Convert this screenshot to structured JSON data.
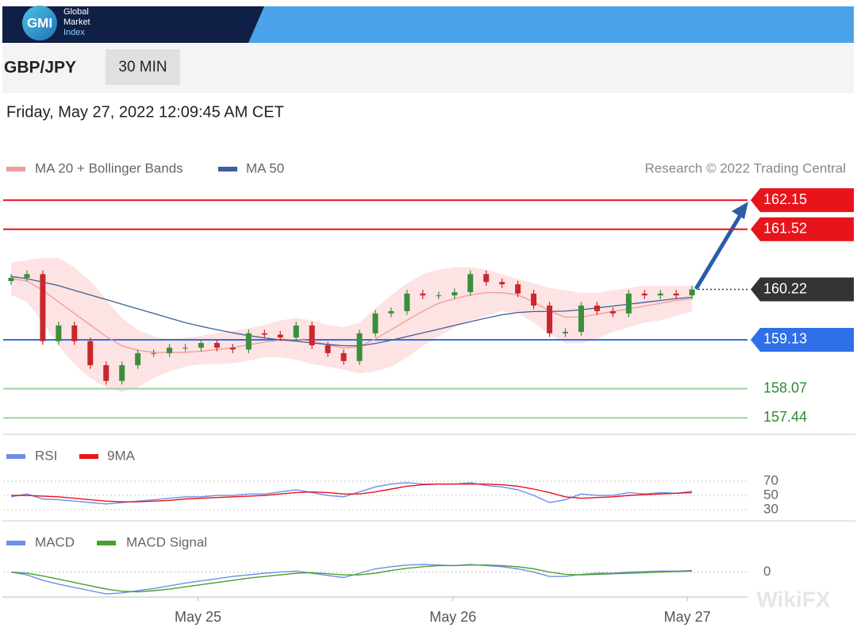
{
  "header": {
    "logo": "GMI",
    "brand": [
      "Global",
      "Market",
      "Index"
    ]
  },
  "symbol": "GBP/JPY",
  "timeframe": "30 MIN",
  "timestamp": "Friday, May 27, 2022 12:09:45 AM CET",
  "watermark": "WikiFX",
  "chart_data": [
    {
      "type": "candlestick",
      "credit": "Research © 2022 Trading Central",
      "x": [
        0,
        1,
        2,
        3,
        4,
        5,
        6,
        7,
        8,
        9,
        10,
        11,
        12,
        13,
        14,
        15,
        16,
        17,
        18,
        19,
        20,
        21,
        22,
        23,
        24,
        25,
        26,
        27,
        28,
        29,
        30,
        31,
        32,
        33,
        34,
        35,
        36,
        37,
        38,
        39,
        40,
        41,
        42,
        43
      ],
      "xlim": [
        -0.5,
        46.5
      ],
      "ylim": [
        157.12,
        162.53
      ],
      "up_color": "#3a8f3a",
      "down_color": "#c8282d",
      "open": [
        160.4,
        160.47,
        160.55,
        159.1,
        159.44,
        159.1,
        158.58,
        158.24,
        158.58,
        158.84,
        158.84,
        158.96,
        158.96,
        159.06,
        158.96,
        158.92,
        159.27,
        159.24,
        159.18,
        159.44,
        159.01,
        158.84,
        158.67,
        159.27,
        159.7,
        159.75,
        160.13,
        160.09,
        160.09,
        160.16,
        160.55,
        160.38,
        160.33,
        160.13,
        159.87,
        159.27,
        159.3,
        159.87,
        159.75,
        159.7,
        160.13,
        160.09,
        160.13,
        160.09
      ],
      "high": [
        160.55,
        160.63,
        160.63,
        159.52,
        159.52,
        159.18,
        158.66,
        158.66,
        158.92,
        158.92,
        159.04,
        159.04,
        159.14,
        159.14,
        159.04,
        159.35,
        159.35,
        159.32,
        159.52,
        159.52,
        159.09,
        158.92,
        159.35,
        159.78,
        159.83,
        160.21,
        160.21,
        160.17,
        160.24,
        160.63,
        160.63,
        160.46,
        160.41,
        160.21,
        159.95,
        159.38,
        159.95,
        159.95,
        159.83,
        160.21,
        160.21,
        160.21,
        160.21,
        160.3
      ],
      "low": [
        160.32,
        160.39,
        159.02,
        159.02,
        159.02,
        158.5,
        158.16,
        158.16,
        158.5,
        158.76,
        158.76,
        158.88,
        158.88,
        158.88,
        158.84,
        158.84,
        159.16,
        159.1,
        159.1,
        158.93,
        158.76,
        158.59,
        158.59,
        159.19,
        159.62,
        159.67,
        160.01,
        160.01,
        160.01,
        160.08,
        160.3,
        160.25,
        160.05,
        159.79,
        159.19,
        159.19,
        159.22,
        159.67,
        159.62,
        159.62,
        160.01,
        160.01,
        160.01,
        160.01
      ],
      "close": [
        160.47,
        160.55,
        159.1,
        159.44,
        159.1,
        158.58,
        158.24,
        158.58,
        158.84,
        158.84,
        158.96,
        158.96,
        159.06,
        158.96,
        158.92,
        159.27,
        159.24,
        159.18,
        159.44,
        159.01,
        158.84,
        158.67,
        159.27,
        159.7,
        159.75,
        160.13,
        160.09,
        160.09,
        160.16,
        160.55,
        160.38,
        160.33,
        160.13,
        159.87,
        159.27,
        159.3,
        159.87,
        159.75,
        159.7,
        160.13,
        160.09,
        160.13,
        160.09,
        160.22
      ],
      "bands": {
        "color": "#fde3e3",
        "upper": [
          160.8,
          160.85,
          160.9,
          160.9,
          160.7,
          160.4,
          160.0,
          159.6,
          159.35,
          159.2,
          159.15,
          159.18,
          159.22,
          159.28,
          159.32,
          159.38,
          159.45,
          159.55,
          159.6,
          159.55,
          159.45,
          159.4,
          159.5,
          159.8,
          160.1,
          160.35,
          160.55,
          160.65,
          160.7,
          160.7,
          160.65,
          160.55,
          160.45,
          160.35,
          160.25,
          160.2,
          160.15,
          160.15,
          160.2,
          160.25,
          160.3,
          160.3,
          160.3,
          160.3
        ],
        "lower": [
          160.1,
          159.95,
          159.5,
          159.0,
          158.6,
          158.3,
          158.1,
          158.0,
          158.1,
          158.3,
          158.45,
          158.55,
          158.6,
          158.6,
          158.62,
          158.68,
          158.75,
          158.75,
          158.7,
          158.6,
          158.55,
          158.48,
          158.4,
          158.45,
          158.55,
          158.75,
          159.0,
          159.2,
          159.4,
          159.55,
          159.65,
          159.75,
          159.7,
          159.5,
          159.25,
          159.05,
          159.05,
          159.15,
          159.3,
          159.4,
          159.5,
          159.55,
          159.65,
          159.75
        ]
      },
      "series": [
        {
          "name": "MA 20 + Bollinger Bands",
          "color": "#f29a9a",
          "values": [
            160.45,
            160.4,
            160.2,
            159.95,
            159.7,
            159.45,
            159.2,
            159.0,
            158.9,
            158.86,
            158.85,
            158.86,
            158.88,
            158.92,
            158.96,
            159.02,
            159.08,
            159.12,
            159.14,
            159.1,
            159.02,
            158.95,
            158.98,
            159.15,
            159.35,
            159.55,
            159.75,
            159.92,
            160.02,
            160.1,
            160.15,
            160.15,
            160.1,
            159.95,
            159.75,
            159.62,
            159.62,
            159.68,
            159.74,
            159.8,
            159.86,
            159.92,
            159.98,
            160.02
          ]
        },
        {
          "name": "MA 50",
          "color": "#3d5f9a",
          "values": [
            160.5,
            160.45,
            160.38,
            160.3,
            160.2,
            160.1,
            160.0,
            159.9,
            159.8,
            159.7,
            159.6,
            159.5,
            159.42,
            159.35,
            159.28,
            159.22,
            159.17,
            159.13,
            159.1,
            159.06,
            159.03,
            159.0,
            159.0,
            159.05,
            159.12,
            159.2,
            159.28,
            159.36,
            159.44,
            159.52,
            159.6,
            159.67,
            159.72,
            159.74,
            159.74,
            159.75,
            159.78,
            159.82,
            159.86,
            159.9,
            159.94,
            159.98,
            160.02,
            160.05
          ]
        }
      ],
      "levels": [
        {
          "value": 162.15,
          "color": "#e8141b",
          "boxed": true
        },
        {
          "value": 161.52,
          "color": "#e8141b",
          "boxed": true
        },
        {
          "value": 160.22,
          "color": "#333333",
          "boxed": true,
          "dotted": true
        },
        {
          "value": 159.13,
          "color": "#2f6fe8",
          "boxed": true
        },
        {
          "value": 158.07,
          "color": "#9fd19f",
          "boxed": false,
          "text_color": "#2e8b2e"
        },
        {
          "value": 157.44,
          "color": "#9fd19f",
          "boxed": false,
          "text_color": "#2e8b2e"
        }
      ]
    },
    {
      "type": "line",
      "ylim": [
        21,
        88
      ],
      "yticks": [
        70,
        50,
        30
      ],
      "series": [
        {
          "name": "RSI",
          "color": "#6f8ee8",
          "values": [
            48,
            52,
            45,
            44,
            42,
            40,
            38,
            40,
            42,
            44,
            46,
            48,
            48,
            50,
            50,
            52,
            52,
            55,
            58,
            54,
            50,
            48,
            55,
            62,
            66,
            68,
            66,
            66,
            66,
            68,
            64,
            62,
            58,
            50,
            40,
            44,
            52,
            50,
            50,
            54,
            52,
            54,
            53,
            56
          ]
        },
        {
          "name": "9MA",
          "color": "#e8141b",
          "values": [
            50,
            50,
            49,
            48,
            46,
            44,
            42,
            41,
            41,
            42,
            43,
            45,
            46,
            47,
            48,
            49,
            50,
            52,
            54,
            55,
            54,
            52,
            52,
            55,
            59,
            63,
            65,
            66,
            66,
            66,
            66,
            65,
            63,
            59,
            54,
            48,
            46,
            47,
            48,
            50,
            51,
            52,
            53,
            54
          ]
        }
      ]
    },
    {
      "type": "line",
      "ylim": [
        -0.5,
        0.3
      ],
      "yticks": [
        0
      ],
      "xticks": [
        {
          "value": 11.8,
          "label": "May 25"
        },
        {
          "value": 27.9,
          "label": "May 26"
        },
        {
          "value": 42.7,
          "label": "May 27"
        }
      ],
      "series": [
        {
          "name": "MACD",
          "color": "#6f8ee8",
          "values": [
            0,
            -0.05,
            -0.15,
            -0.22,
            -0.28,
            -0.34,
            -0.4,
            -0.38,
            -0.34,
            -0.3,
            -0.25,
            -0.2,
            -0.16,
            -0.12,
            -0.08,
            -0.05,
            -0.02,
            0,
            0.02,
            -0.02,
            -0.06,
            -0.1,
            -0.02,
            0.06,
            0.1,
            0.13,
            0.14,
            0.13,
            0.12,
            0.14,
            0.12,
            0.1,
            0.06,
            0,
            -0.08,
            -0.08,
            -0.04,
            -0.02,
            -0.02,
            0,
            0.01,
            0.02,
            0.02,
            0.03
          ]
        },
        {
          "name": "MACD Signal",
          "color": "#4aa02c",
          "values": [
            0,
            -0.02,
            -0.07,
            -0.13,
            -0.19,
            -0.25,
            -0.31,
            -0.35,
            -0.36,
            -0.34,
            -0.31,
            -0.27,
            -0.23,
            -0.19,
            -0.15,
            -0.11,
            -0.08,
            -0.05,
            -0.02,
            -0.01,
            -0.03,
            -0.05,
            -0.05,
            -0.02,
            0.03,
            0.07,
            0.1,
            0.12,
            0.12,
            0.13,
            0.13,
            0.12,
            0.1,
            0.06,
            0,
            -0.04,
            -0.05,
            -0.04,
            -0.03,
            -0.02,
            -0.01,
            0,
            0.01,
            0.02
          ]
        }
      ]
    }
  ]
}
